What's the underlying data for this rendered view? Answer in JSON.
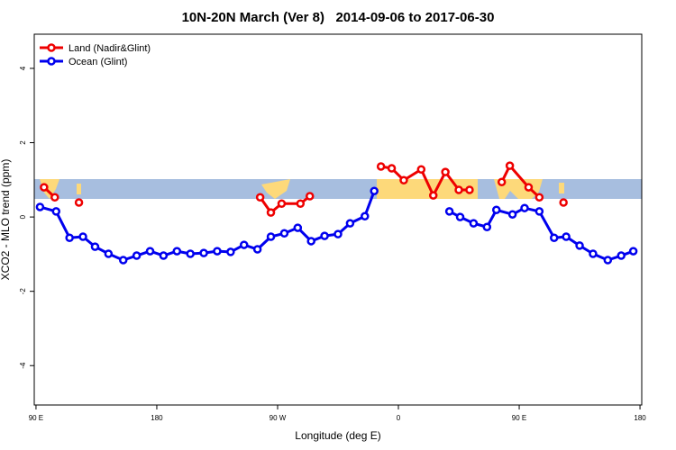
{
  "chart_data": {
    "type": "line",
    "title": "10N-20N March (Ver 8)   2014-09-06 to 2017-06-30",
    "xlabel": "Longitude (deg E)",
    "ylabel": "XCO2 - MLO trend (ppm)",
    "xlim": [
      88.7,
      541.3
    ],
    "ylim": [
      -5.06,
      4.92
    ],
    "xticks": [
      {
        "value": 90,
        "label": "90 E"
      },
      180,
      {
        "value": 270,
        "label": "90 W"
      },
      {
        "value": 360,
        "label": "0"
      },
      {
        "value": 450,
        "label": "90 E"
      },
      {
        "value": 540,
        "label": "180"
      }
    ],
    "yticks": [
      -4,
      -2,
      0,
      2,
      4
    ],
    "legend": "top-left",
    "series": [
      {
        "name": "Land (Nadir&Glint)",
        "color": "#ee0000",
        "x": [
          96,
          104,
          null,
          122,
          null,
          257,
          265,
          273,
          287,
          294,
          null,
          347,
          355,
          364,
          377,
          386,
          395,
          405,
          413,
          null,
          437,
          443,
          457,
          465,
          null,
          483
        ],
        "values": [
          0.8,
          0.53,
          null,
          0.39,
          null,
          0.53,
          0.12,
          0.36,
          0.36,
          0.56,
          null,
          1.36,
          1.31,
          0.99,
          1.28,
          0.58,
          1.21,
          0.73,
          0.73,
          null,
          0.94,
          1.38,
          0.8,
          0.53,
          null,
          0.39
        ]
      },
      {
        "name": "Ocean (Glint)",
        "color": "#0000ee",
        "x": [
          93,
          105,
          115,
          125,
          134,
          144,
          155,
          165,
          175,
          185,
          195,
          205,
          215,
          225,
          235,
          245,
          255,
          265,
          275,
          285,
          295,
          305,
          315,
          324,
          335,
          342,
          null,
          398,
          406,
          416,
          426,
          433,
          445,
          454,
          465,
          476,
          485,
          495,
          505,
          516,
          526,
          535
        ],
        "values": [
          0.27,
          0.15,
          -0.56,
          -0.53,
          -0.8,
          -0.99,
          -1.16,
          -1.04,
          -0.92,
          -1.04,
          -0.92,
          -0.99,
          -0.97,
          -0.92,
          -0.94,
          -0.75,
          -0.87,
          -0.53,
          -0.44,
          -0.29,
          -0.65,
          -0.51,
          -0.46,
          -0.17,
          0.02,
          0.7,
          null,
          0.15,
          0.0,
          -0.17,
          -0.27,
          0.19,
          0.07,
          0.24,
          0.15,
          -0.56,
          -0.53,
          -0.77,
          -0.99,
          -1.16,
          -1.04,
          -0.92
        ]
      }
    ]
  }
}
